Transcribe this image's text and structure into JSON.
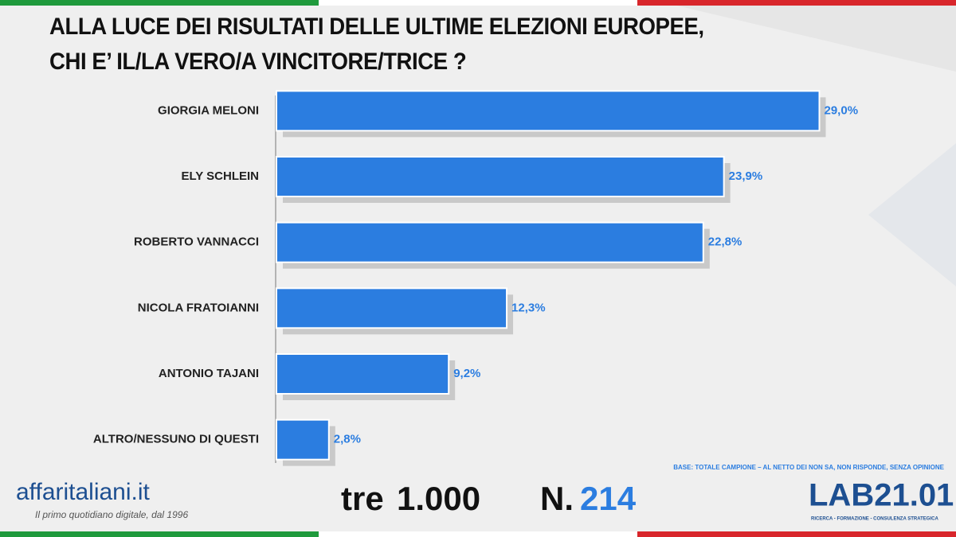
{
  "chart_data": {
    "type": "barh",
    "title": "ALLA LUCE DEI RISULTATI DELLE ULTIME ELEZIONI EUROPEE, CHI E’ IL/LA VERO/A VINCITORE/TRICE ?",
    "categories": [
      "GIORGIA MELONI",
      "ELY SCHLEIN",
      "ROBERTO VANNACCI",
      "NICOLA FRATOIANNI",
      "ANTONIO TAJANI",
      "ALTRO/NESSUNO DI QUESTI"
    ],
    "values": [
      29.0,
      23.9,
      22.8,
      12.3,
      9.2,
      2.8
    ],
    "value_labels": [
      "29,0%",
      "23,9%",
      "22,8%",
      "12,3%",
      "9,2%",
      "2,8%"
    ],
    "color": "#2b7de0",
    "xlim": [
      0,
      30
    ],
    "note": "BASE: TOTALE CAMPIONE – AL NETTO DEI NON SA, NON RISPONDE, SENZA OPINIONE"
  },
  "footer": {
    "brand": "affaritaliani.it",
    "tagline": "Il primo quotidiano digitale, dal 1996",
    "series_prefix": "tre",
    "series_count": "1.000",
    "number_prefix": "N.",
    "number": "214",
    "lab": "LAB21.01",
    "lab_tagline": "RICERCA - FORMAZIONE - CONSULENZA STRATEGICA"
  }
}
